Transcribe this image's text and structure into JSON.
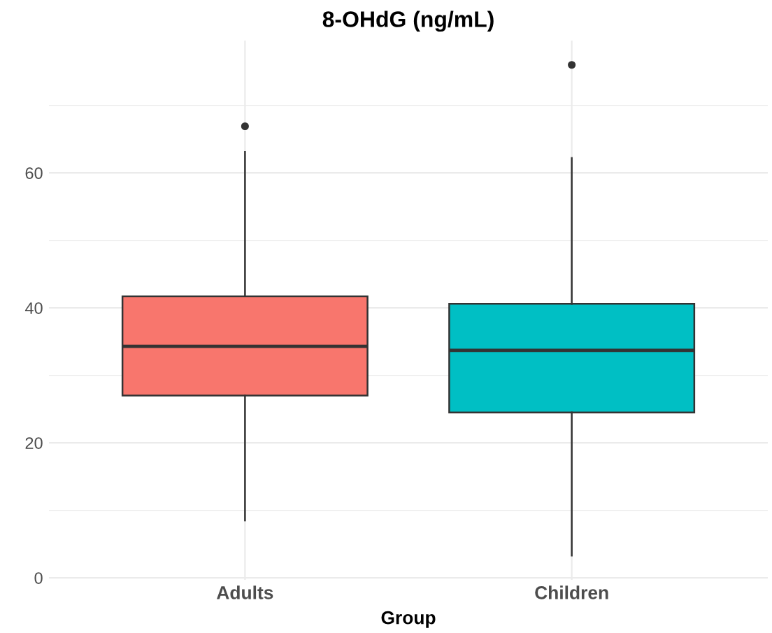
{
  "chart_data": {
    "type": "box",
    "title": "8-OHdG (ng/mL)",
    "xlabel": "Group",
    "categories": [
      "Adults",
      "Children"
    ],
    "colors": [
      "#f8766d",
      "#00bfc4"
    ],
    "boxes": [
      {
        "low": 8.5,
        "q1": 27.0,
        "median": 34.3,
        "q3": 41.7,
        "high": 63.1,
        "outliers": [
          66.9
        ]
      },
      {
        "low": 3.3,
        "q1": 24.5,
        "median": 33.7,
        "q3": 40.6,
        "high": 62.2,
        "outliers": [
          76.0
        ]
      }
    ],
    "ylim": [
      -0.3,
      79.6
    ],
    "yticks": [
      0,
      20,
      40,
      60
    ],
    "grid": true
  }
}
